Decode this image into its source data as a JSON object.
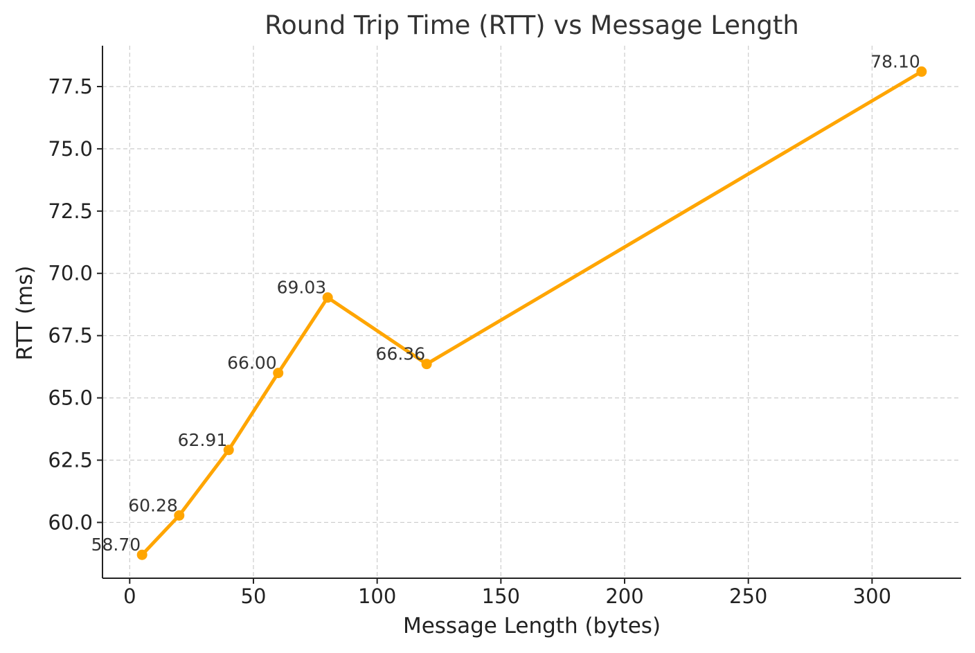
{
  "chart_data": {
    "type": "line",
    "title": "Round Trip Time (RTT) vs Message Length",
    "xlabel": "Message Length (bytes)",
    "ylabel": "RTT (ms)",
    "xlim": [
      -11,
      336
    ],
    "ylim": [
      57.76,
      79.14
    ],
    "x_ticks": [
      0,
      50,
      100,
      150,
      200,
      250,
      300
    ],
    "y_ticks": [
      60.0,
      62.5,
      65.0,
      67.5,
      70.0,
      72.5,
      75.0,
      77.5
    ],
    "x_tick_labels": [
      "0",
      "50",
      "100",
      "150",
      "200",
      "250",
      "300"
    ],
    "y_tick_labels": [
      "60.0",
      "62.5",
      "65.0",
      "67.5",
      "70.0",
      "72.5",
      "75.0",
      "77.5"
    ],
    "grid": true,
    "series": [
      {
        "color": "#FFA500",
        "marker": "circle",
        "x": [
          5,
          20,
          40,
          60,
          80,
          120,
          320
        ],
        "y": [
          58.7,
          60.28,
          62.91,
          66.0,
          69.03,
          66.36,
          78.1
        ],
        "data_labels": [
          "58.70",
          "60.28",
          "62.91",
          "66.00",
          "69.03",
          "66.36",
          "78.10"
        ]
      }
    ]
  }
}
